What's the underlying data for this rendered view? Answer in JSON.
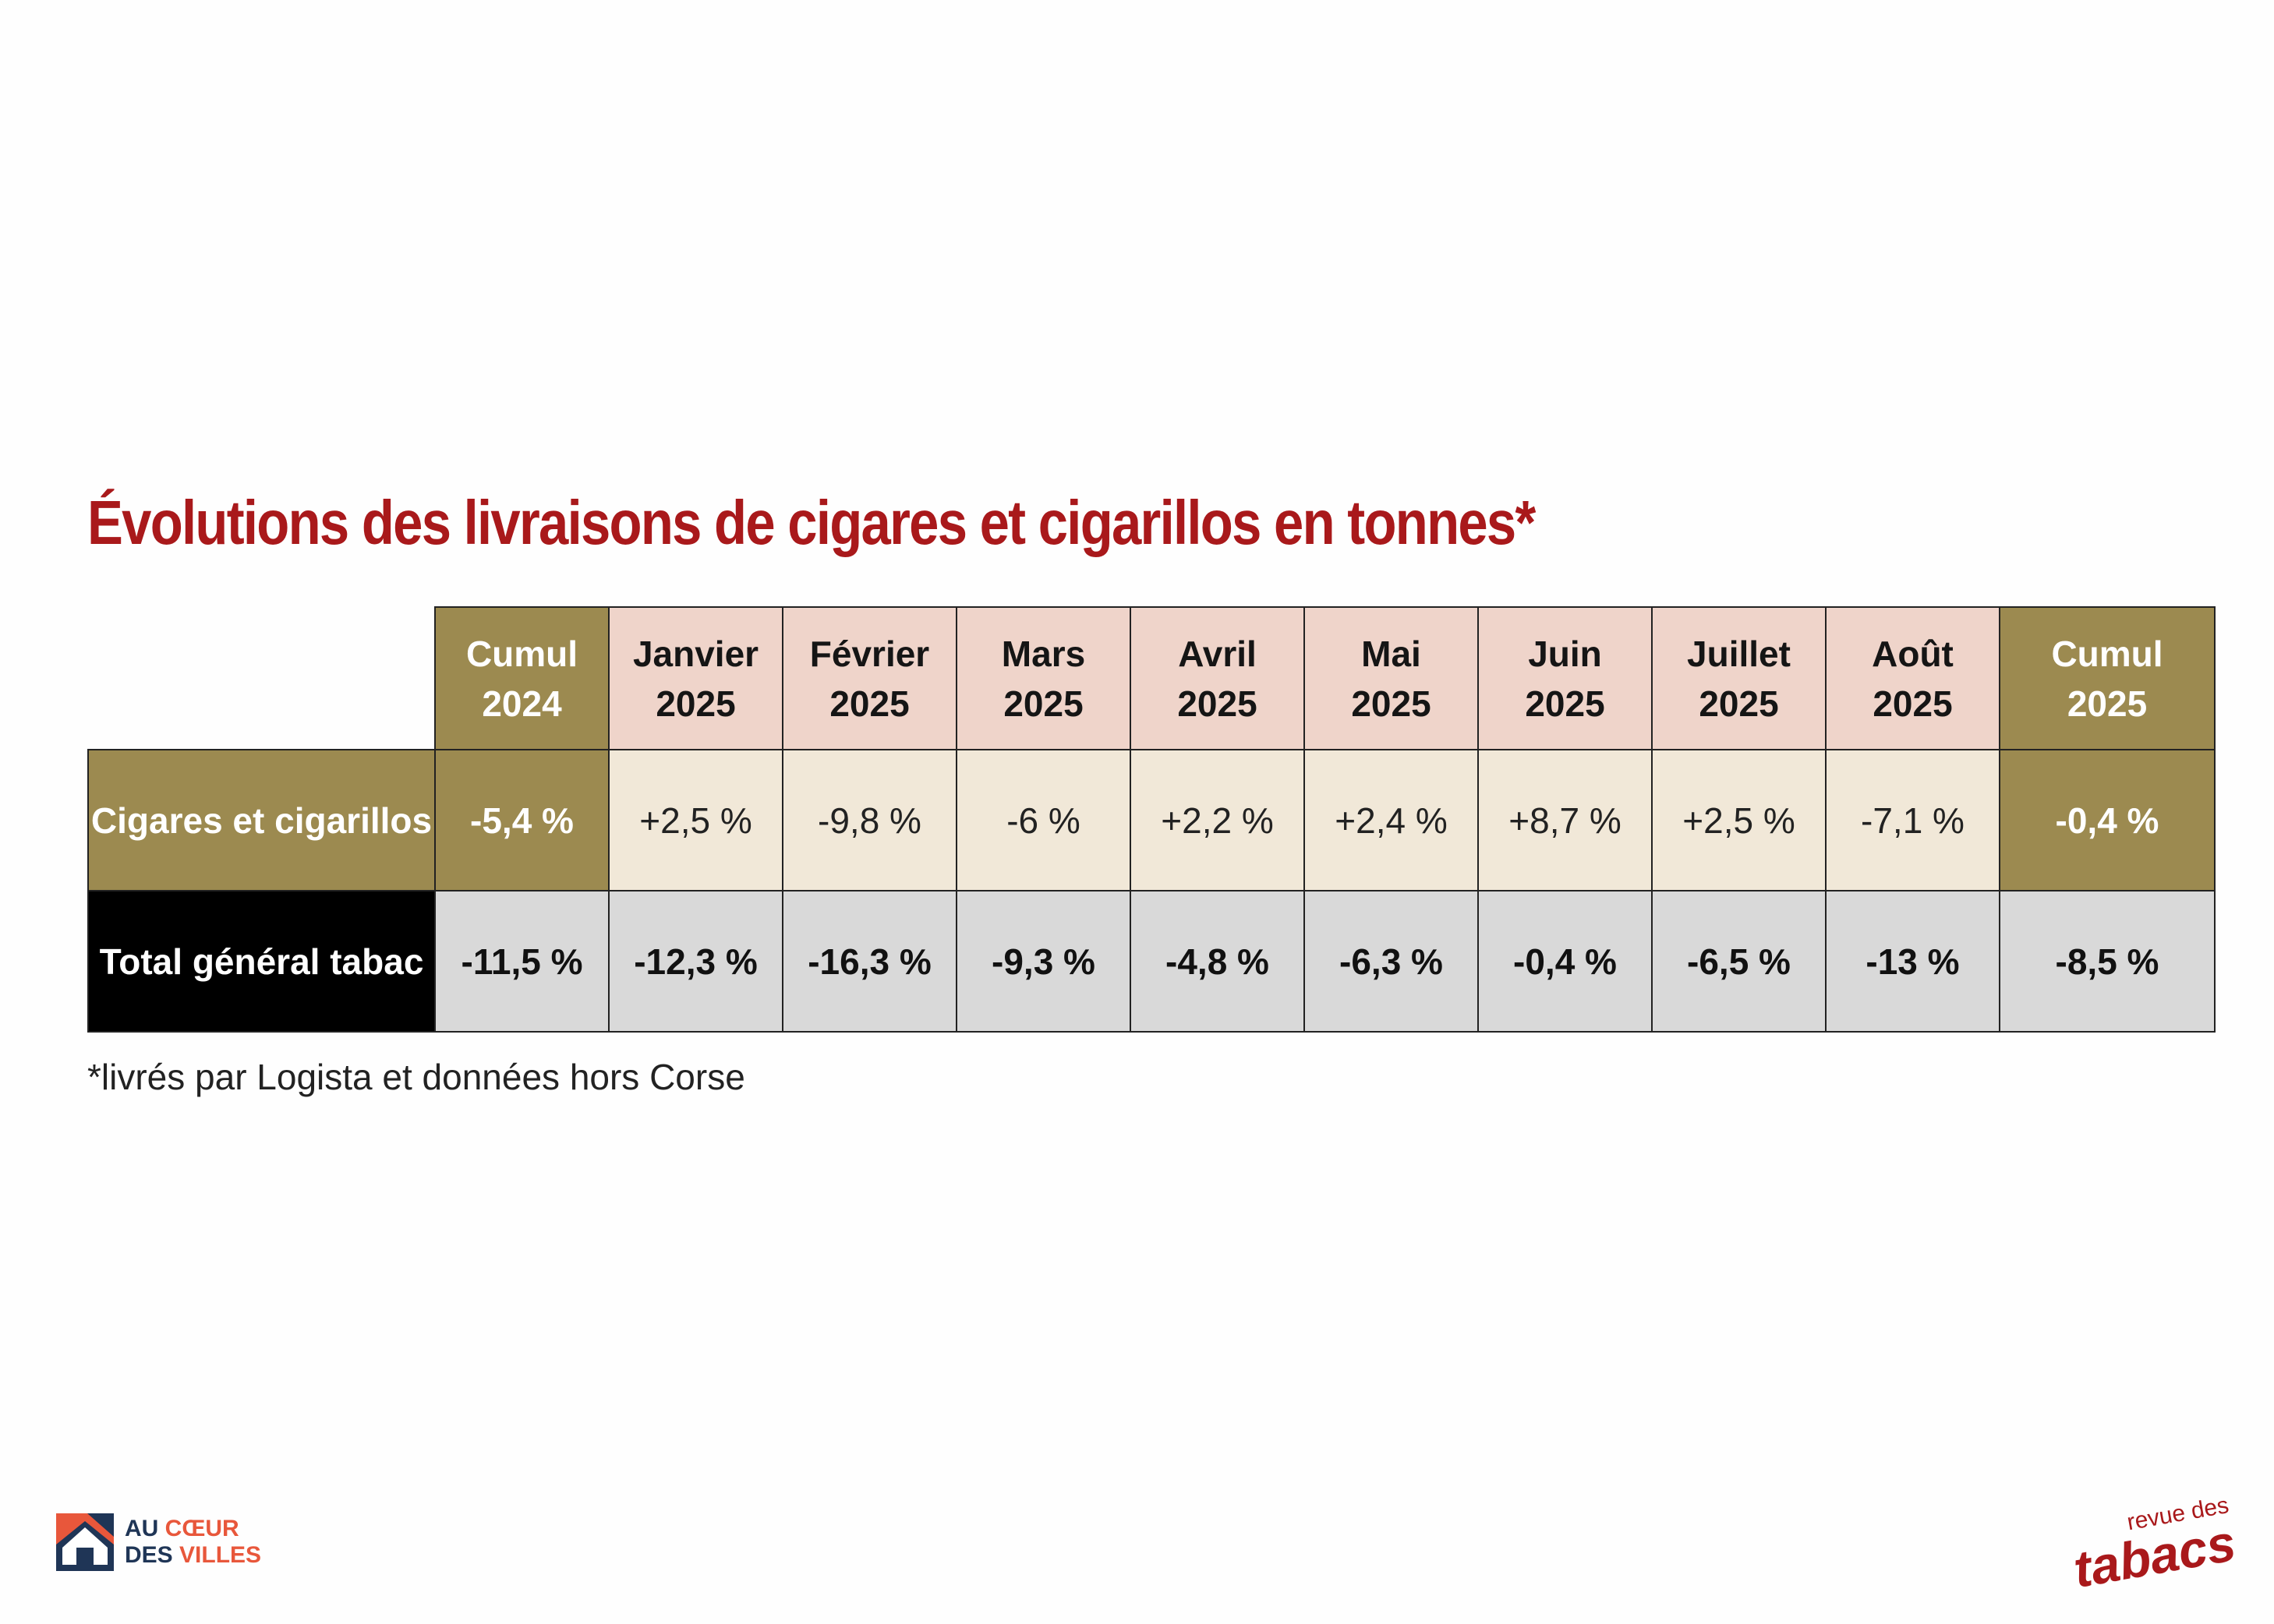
{
  "title": "Évolutions des livraisons de cigares et cigarillos en tonnes*",
  "footnote": "*livrés par Logista et données hors Corse",
  "logos": {
    "left": {
      "line1a": "AU ",
      "line1b": "CŒUR",
      "line2a": "DES ",
      "line2b": "VILLES",
      "icon": "house-icon"
    },
    "right": {
      "small": "revue des",
      "big": "tabacs"
    }
  },
  "colors": {
    "title": "#a9191b",
    "cumul": "#9c8a50",
    "month_header": "#efd4ca",
    "cig_row": "#f1e8d8",
    "total_row": "#d9d9d9",
    "total_label": "#000000"
  },
  "chart_data": {
    "type": "table",
    "title": "Évolutions des livraisons de cigares et cigarillos en tonnes*",
    "columns": [
      {
        "l1": "Cumul",
        "l2": "2024",
        "kind": "cumul"
      },
      {
        "l1": "Janvier",
        "l2": "2025",
        "kind": "month"
      },
      {
        "l1": "Février",
        "l2": "2025",
        "kind": "month"
      },
      {
        "l1": "Mars",
        "l2": "2025",
        "kind": "month"
      },
      {
        "l1": "Avril",
        "l2": "2025",
        "kind": "month"
      },
      {
        "l1": "Mai",
        "l2": "2025",
        "kind": "month"
      },
      {
        "l1": "Juin",
        "l2": "2025",
        "kind": "month"
      },
      {
        "l1": "Juillet",
        "l2": "2025",
        "kind": "month"
      },
      {
        "l1": "Août",
        "l2": "2025",
        "kind": "month"
      },
      {
        "l1": "Cumul",
        "l2": "2025",
        "kind": "cumul"
      }
    ],
    "rows": [
      {
        "label": "Cigares et cigarillos",
        "values": [
          "-5,4 %",
          "+2,5 %",
          "-9,8 %",
          "-6 %",
          "+2,2 %",
          "+2,4 %",
          "+8,7 %",
          "+2,5 %",
          "-7,1 %",
          "-0,4 %"
        ]
      },
      {
        "label": "Total général tabac",
        "values": [
          "-11,5 %",
          "-12,3 %",
          "-16,3 %",
          "-9,3 %",
          "-4,8 %",
          "-6,3 %",
          "-0,4 %",
          "-6,5 %",
          "-13 %",
          "-8,5 %"
        ]
      }
    ]
  }
}
